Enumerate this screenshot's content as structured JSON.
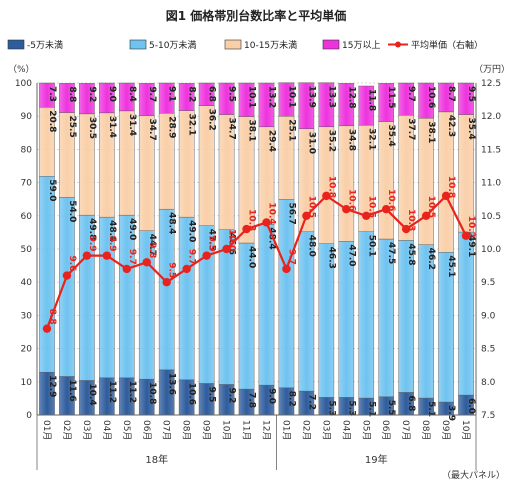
{
  "chart_data": {
    "type": "bar",
    "stacked": true,
    "title": "図1 価格帯別台数比率と平均単価",
    "left_axis_unit": "（%）",
    "right_axis_unit": "（万円）",
    "ylim": [
      0,
      100
    ],
    "y2lim": [
      7.5,
      12.5
    ],
    "left_ticks": [
      "0",
      "10",
      "20",
      "30",
      "40",
      "50",
      "60",
      "70",
      "80",
      "90",
      "100"
    ],
    "right_ticks": [
      "7.5",
      "8.0",
      "8.5",
      "9.0",
      "9.5",
      "10.0",
      "10.5",
      "11.0",
      "11.5",
      "12.0",
      "12.5"
    ],
    "categories": [
      "01月",
      "02月",
      "03月",
      "04月",
      "05月",
      "06月",
      "07月",
      "08月",
      "09月",
      "10月",
      "11月",
      "12月",
      "01月",
      "02月",
      "03月",
      "04月",
      "05月",
      "06月",
      "07月",
      "08月",
      "09月",
      "10月"
    ],
    "year_groups": [
      {
        "label": "18年",
        "start": 0,
        "end": 11
      },
      {
        "label": "19年",
        "start": 12,
        "end": 21
      }
    ],
    "series": [
      {
        "name": "-5万未満",
        "color": "#2e5c9c",
        "values": [
          12.9,
          11.6,
          10.4,
          11.2,
          11.2,
          10.8,
          13.6,
          10.6,
          9.5,
          9.2,
          7.8,
          9.0,
          8.2,
          7.2,
          5.3,
          5.3,
          5.1,
          5.5,
          6.8,
          5.1,
          3.9,
          6.0
        ]
      },
      {
        "name": "5-10万未満",
        "color": "#6fc3f0",
        "values": [
          59.0,
          54.0,
          49.8,
          48.4,
          49.0,
          44.7,
          48.4,
          49.0,
          47.5,
          46.6,
          44.0,
          48.4,
          56.7,
          48.0,
          46.3,
          47.0,
          50.1,
          47.5,
          45.8,
          46.2,
          45.1,
          49.1
        ]
      },
      {
        "name": "10-15万未満",
        "color": "#f9cfa8",
        "values": [
          20.8,
          25.5,
          30.5,
          31.4,
          31.4,
          34.7,
          28.9,
          32.1,
          36.2,
          34.7,
          38.1,
          29.4,
          25.1,
          31.0,
          35.2,
          34.8,
          32.1,
          35.4,
          37.7,
          38.1,
          42.3,
          35.4
        ]
      },
      {
        "name": "15万以上",
        "color": "#ee33dd",
        "values": [
          7.3,
          8.8,
          9.2,
          9.0,
          8.4,
          9.7,
          9.1,
          8.2,
          6.8,
          9.5,
          10.1,
          13.2,
          10.1,
          13.9,
          13.3,
          12.8,
          11.8,
          11.5,
          9.7,
          10.6,
          8.7,
          9.5
        ]
      }
    ],
    "line_series": {
      "name": "平均単価（右軸）",
      "color": "#e8231d",
      "values": [
        8.8,
        9.6,
        9.9,
        9.9,
        9.7,
        9.8,
        9.5,
        9.7,
        9.9,
        10.0,
        10.3,
        10.4,
        9.7,
        10.5,
        10.8,
        10.6,
        10.5,
        10.6,
        10.3,
        10.5,
        10.8,
        10.2
      ]
    },
    "grid": true,
    "legend": "top",
    "footnote": "（最大パネル）"
  }
}
